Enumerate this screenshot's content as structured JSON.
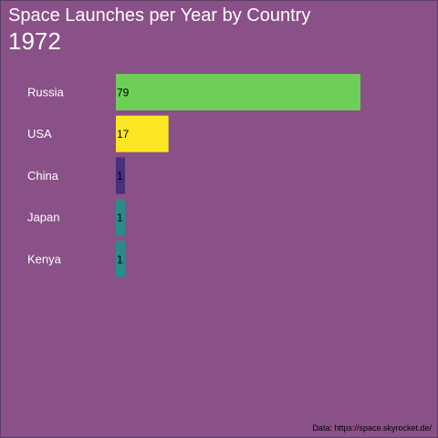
{
  "title": "Space Launches per Year by Country",
  "year": "1972",
  "source": "Data: https://space.skyrocket.de/",
  "chart_data": {
    "type": "bar",
    "orientation": "horizontal",
    "title": "Space Launches per Year by Country",
    "subtitle": "1972",
    "categories": [
      "Russia",
      "USA",
      "China",
      "Japan",
      "Kenya"
    ],
    "values": [
      79,
      17,
      1,
      1,
      1
    ],
    "colors": [
      "#6ecf58",
      "#fde725",
      "#462f7c",
      "#2a8c86",
      "#2a8c86"
    ],
    "xlim": [
      0,
      79
    ],
    "grid": false,
    "legend": "none"
  }
}
